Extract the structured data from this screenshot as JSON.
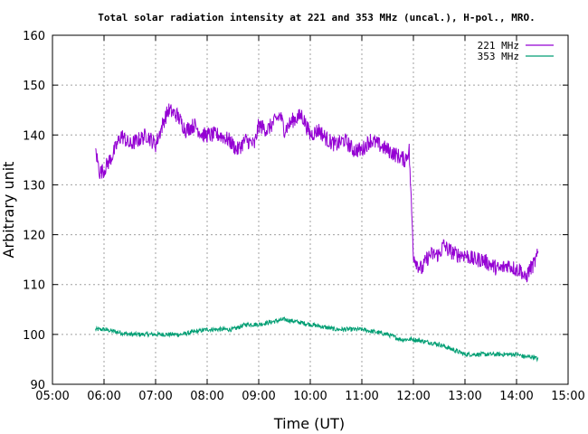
{
  "chart_data": {
    "type": "line",
    "title": "Total solar radiation intensity at 221 and 353 MHz (uncal.), H-pol., MRO.",
    "xlabel": "Time (UT)",
    "ylabel": "Arbitrary unit",
    "xlim": [
      "05:00",
      "15:00"
    ],
    "ylim": [
      90,
      160
    ],
    "xticks": [
      "05:00",
      "06:00",
      "07:00",
      "08:00",
      "09:00",
      "10:00",
      "11:00",
      "12:00",
      "13:00",
      "14:00",
      "15:00"
    ],
    "yticks": [
      90,
      100,
      110,
      120,
      130,
      140,
      150,
      160
    ],
    "grid": true,
    "legend_position": "top-right",
    "series": [
      {
        "name": "221 MHz",
        "color": "#9400d3",
        "x": [
          "05:50",
          "05:55",
          "06:00",
          "06:10",
          "06:20",
          "06:30",
          "06:40",
          "06:50",
          "07:00",
          "07:10",
          "07:15",
          "07:25",
          "07:35",
          "07:45",
          "07:55",
          "08:05",
          "08:15",
          "08:25",
          "08:35",
          "08:45",
          "08:55",
          "09:00",
          "09:10",
          "09:20",
          "09:25",
          "09:30",
          "09:40",
          "09:50",
          "10:00",
          "10:10",
          "10:20",
          "10:30",
          "10:40",
          "10:50",
          "11:00",
          "11:10",
          "11:20",
          "11:30",
          "11:40",
          "11:50",
          "11:55",
          "12:00",
          "12:05",
          "12:10",
          "12:15",
          "12:20",
          "12:30",
          "12:35",
          "12:40",
          "12:50",
          "13:00",
          "13:10",
          "13:20",
          "13:30",
          "13:40",
          "13:50",
          "14:00",
          "14:05",
          "14:10",
          "14:15",
          "14:20",
          "14:25"
        ],
        "y": [
          137,
          132.5,
          133,
          136,
          140,
          138,
          139,
          140,
          138,
          143,
          145,
          144,
          141,
          142,
          140,
          140,
          140,
          139,
          137,
          139,
          138,
          142,
          141,
          143,
          144,
          141,
          143,
          144,
          140,
          141,
          139,
          138,
          139,
          137,
          137,
          139,
          138,
          137,
          136,
          135,
          137,
          116,
          114,
          113,
          115,
          116,
          116,
          118,
          117,
          116,
          116,
          115,
          115,
          114,
          113,
          114,
          113,
          113,
          111,
          113,
          114,
          116
        ]
      },
      {
        "name": "353 MHz",
        "color": "#009e73",
        "x": [
          "05:50",
          "06:00",
          "06:30",
          "07:00",
          "07:30",
          "08:00",
          "08:30",
          "08:45",
          "09:00",
          "09:30",
          "10:00",
          "10:30",
          "11:00",
          "11:30",
          "11:45",
          "12:00",
          "12:30",
          "12:45",
          "13:00",
          "13:30",
          "14:00",
          "14:10",
          "14:20",
          "14:25"
        ],
        "y": [
          101,
          101,
          100,
          100,
          100,
          101,
          101,
          102,
          102,
          103,
          102,
          101,
          101,
          100,
          99,
          99,
          98,
          97,
          96,
          96,
          96,
          95.5,
          95.5,
          95
        ]
      }
    ]
  }
}
